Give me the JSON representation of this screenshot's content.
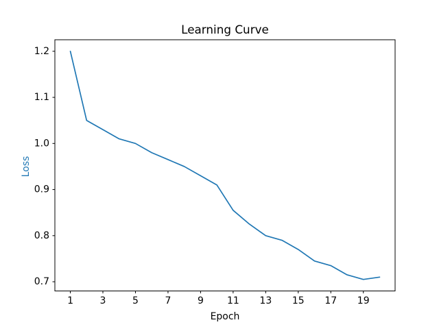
{
  "figure": {
    "background": "#ffffff"
  },
  "chart_data": {
    "type": "line",
    "title": "Learning Curve",
    "xlabel": "Epoch",
    "ylabel": "Loss",
    "x": [
      1,
      2,
      3,
      4,
      5,
      6,
      7,
      8,
      9,
      10,
      11,
      12,
      13,
      14,
      15,
      16,
      17,
      18,
      19,
      20
    ],
    "series": [
      {
        "name": "loss",
        "values": [
          1.2,
          1.05,
          1.03,
          1.01,
          1.0,
          0.98,
          0.965,
          0.95,
          0.93,
          0.91,
          0.855,
          0.825,
          0.8,
          0.79,
          0.77,
          0.745,
          0.735,
          0.715,
          0.705,
          0.71
        ]
      }
    ],
    "xticks": [
      1,
      3,
      5,
      7,
      9,
      11,
      13,
      15,
      17,
      19
    ],
    "yticks": [
      0.7,
      0.8,
      0.9,
      1.0,
      1.1,
      1.2
    ],
    "xlim": [
      0.05,
      20.95
    ],
    "ylim": [
      0.68,
      1.225
    ],
    "grid": false,
    "legend": null,
    "legend_position": "none",
    "line_color": "#1f77b4",
    "ylabel_color": "#1f77b4",
    "text_color": "#000000",
    "axis_color": "#000000"
  }
}
